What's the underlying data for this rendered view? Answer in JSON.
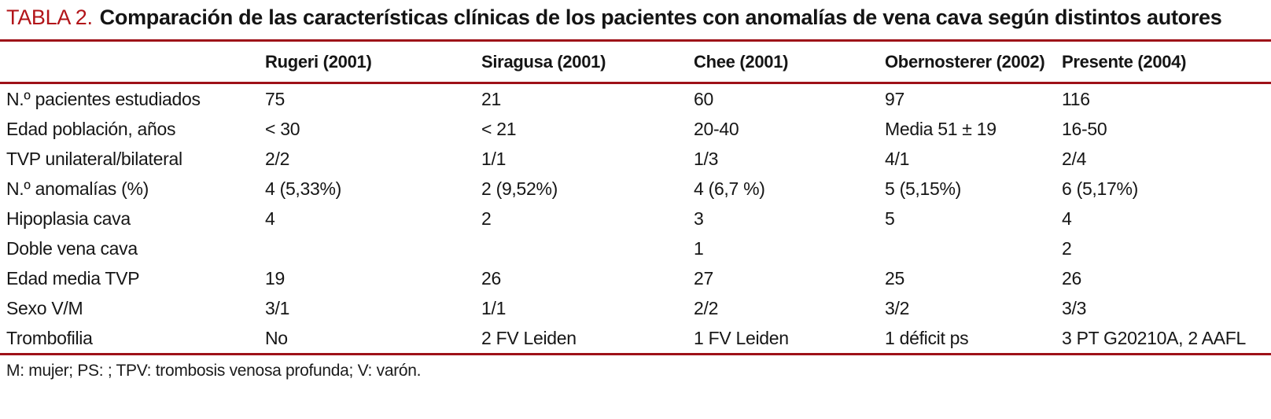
{
  "title": {
    "label": "TABLA 2.",
    "text": "Comparación de las características clínicas de los pacientes con anomalías de vena cava según distintos autores"
  },
  "colors": {
    "accent_red": "#b21419",
    "rule_red": "#9e1118",
    "text": "#1b1b1b"
  },
  "chart_data": {
    "type": "table",
    "title": "TABLA 2. Comparación de las características clínicas de los pacientes con anomalías de vena cava según distintos autores",
    "columns": [
      "",
      "Rugeri (2001)",
      "Siragusa (2001)",
      "Chee (2001)",
      "Obernosterer (2002)",
      "Presente (2004)"
    ],
    "rows": [
      [
        "N.º pacientes estudiados",
        "75",
        "21",
        "60",
        "97",
        "116"
      ],
      [
        "Edad población, años",
        "< 30",
        "< 21",
        "20-40",
        "Media 51 ± 19",
        "16-50"
      ],
      [
        "TVP unilateral/bilateral",
        "2/2",
        "1/1",
        "1/3",
        "4/1",
        "2/4"
      ],
      [
        "N.º anomalías (%)",
        "4 (5,33%)",
        "2 (9,52%)",
        "4 (6,7 %)",
        "5 (5,15%)",
        "6 (5,17%)"
      ],
      [
        "Hipoplasia cava",
        "4",
        "2",
        "3",
        "5",
        "4"
      ],
      [
        "Doble vena cava",
        "",
        "",
        "1",
        "",
        "2"
      ],
      [
        "Edad media TVP",
        "19",
        "26",
        "27",
        "25",
        "26"
      ],
      [
        "Sexo V/M",
        "3/1",
        "1/1",
        "2/2",
        "3/2",
        "3/3"
      ],
      [
        "Trombofilia",
        "No",
        "2 FV Leiden",
        "1 FV Leiden",
        "1 déficit ps",
        "3 PT G20210A, 2 AAFL"
      ]
    ]
  },
  "table": {
    "columns": [
      "",
      "Rugeri (2001)",
      "Siragusa (2001)",
      "Chee (2001)",
      "Obernosterer (2002)",
      "Presente (2004)"
    ],
    "rows": [
      {
        "label": "N.º pacientes estudiados",
        "values": [
          "75",
          "21",
          "60",
          "97",
          "116"
        ]
      },
      {
        "label": "Edad población, años",
        "values": [
          "< 30",
          "< 21",
          "20-40",
          "Media 51 ± 19",
          "16-50"
        ]
      },
      {
        "label": "TVP unilateral/bilateral",
        "values": [
          "2/2",
          "1/1",
          "1/3",
          "4/1",
          "2/4"
        ]
      },
      {
        "label": "N.º anomalías (%)",
        "values": [
          "4 (5,33%)",
          "2 (9,52%)",
          "4 (6,7 %)",
          "5 (5,15%)",
          "6 (5,17%)"
        ]
      },
      {
        "label": "Hipoplasia cava",
        "values": [
          "4",
          "2",
          "3",
          "5",
          "4"
        ]
      },
      {
        "label": "Doble vena cava",
        "values": [
          "",
          "",
          "1",
          "",
          "2"
        ]
      },
      {
        "label": "Edad media TVP",
        "values": [
          "19",
          "26",
          "27",
          "25",
          "26"
        ]
      },
      {
        "label": "Sexo V/M",
        "values": [
          "3/1",
          "1/1",
          "2/2",
          "3/2",
          "3/3"
        ]
      },
      {
        "label": "Trombofilia",
        "values": [
          "No",
          "2 FV Leiden",
          "1 FV Leiden",
          "1 déficit ps",
          "3 PT G20210A, 2 AAFL"
        ]
      }
    ]
  },
  "footnote": "M: mujer; PS: ; TPV: trombosis venosa profunda; V: varón."
}
